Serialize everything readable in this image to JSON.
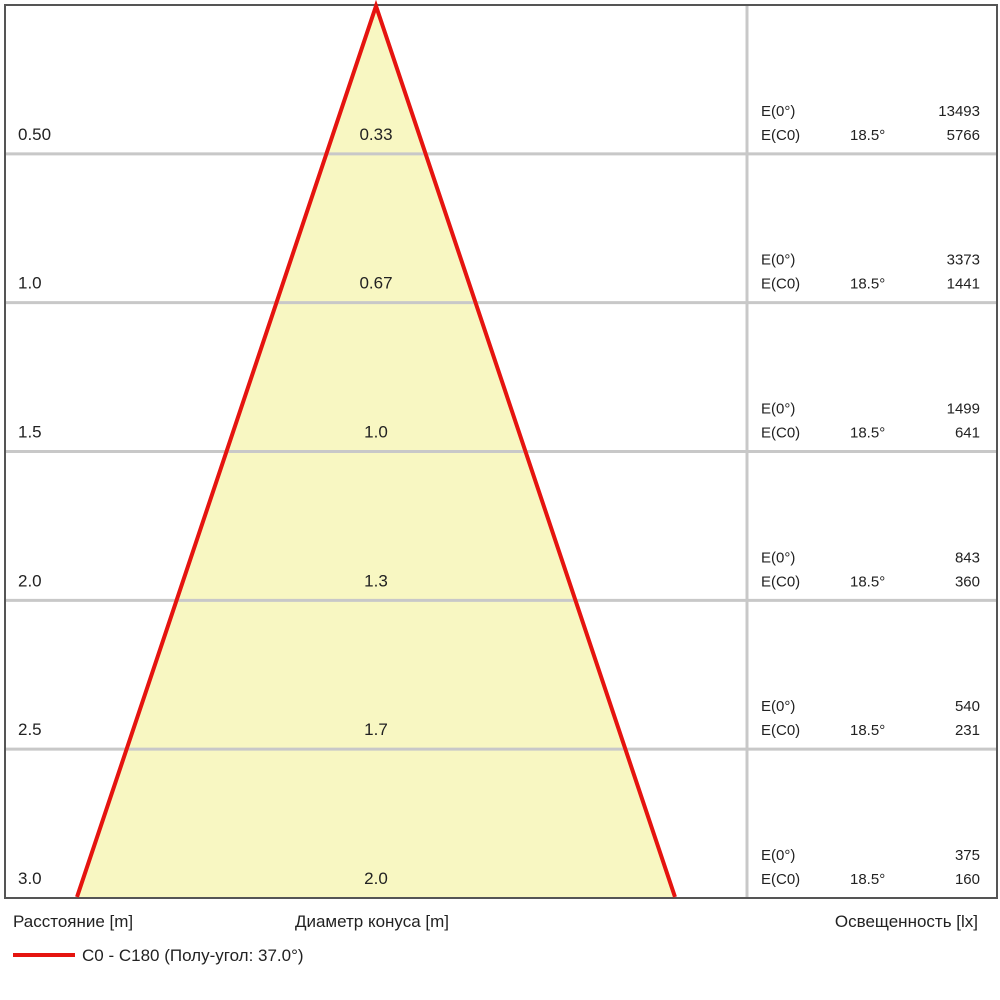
{
  "rows": [
    {
      "distance": "0.50",
      "diameter": "0.33",
      "e0_label": "E(0°)",
      "e0": "13493",
      "ec0_label": "E(C0)",
      "ec0_angle": "18.5°",
      "ec0": "5766"
    },
    {
      "distance": "1.0",
      "diameter": "0.67",
      "e0_label": "E(0°)",
      "e0": "3373",
      "ec0_label": "E(C0)",
      "ec0_angle": "18.5°",
      "ec0": "1441"
    },
    {
      "distance": "1.5",
      "diameter": "1.0",
      "e0_label": "E(0°)",
      "e0": "1499",
      "ec0_label": "E(C0)",
      "ec0_angle": "18.5°",
      "ec0": "641"
    },
    {
      "distance": "2.0",
      "diameter": "1.3",
      "e0_label": "E(0°)",
      "e0": "843",
      "ec0_label": "E(C0)",
      "ec0_angle": "18.5°",
      "ec0": "360"
    },
    {
      "distance": "2.5",
      "diameter": "1.7",
      "e0_label": "E(0°)",
      "e0": "540",
      "ec0_label": "E(C0)",
      "ec0_angle": "18.5°",
      "ec0": "231"
    },
    {
      "distance": "3.0",
      "diameter": "2.0",
      "e0_label": "E(0°)",
      "e0": "375",
      "ec0_label": "E(C0)",
      "ec0_angle": "18.5°",
      "ec0": "160"
    }
  ],
  "footer": {
    "distance_label": "Расстояние [m]",
    "diameter_label": "Диаметр конуса [m]",
    "illuminance_label": "Освещенность [lx]"
  },
  "legend": {
    "label": "C0 - C180 (Полу-угол: 37.0°)",
    "color": "#e5140f"
  }
}
